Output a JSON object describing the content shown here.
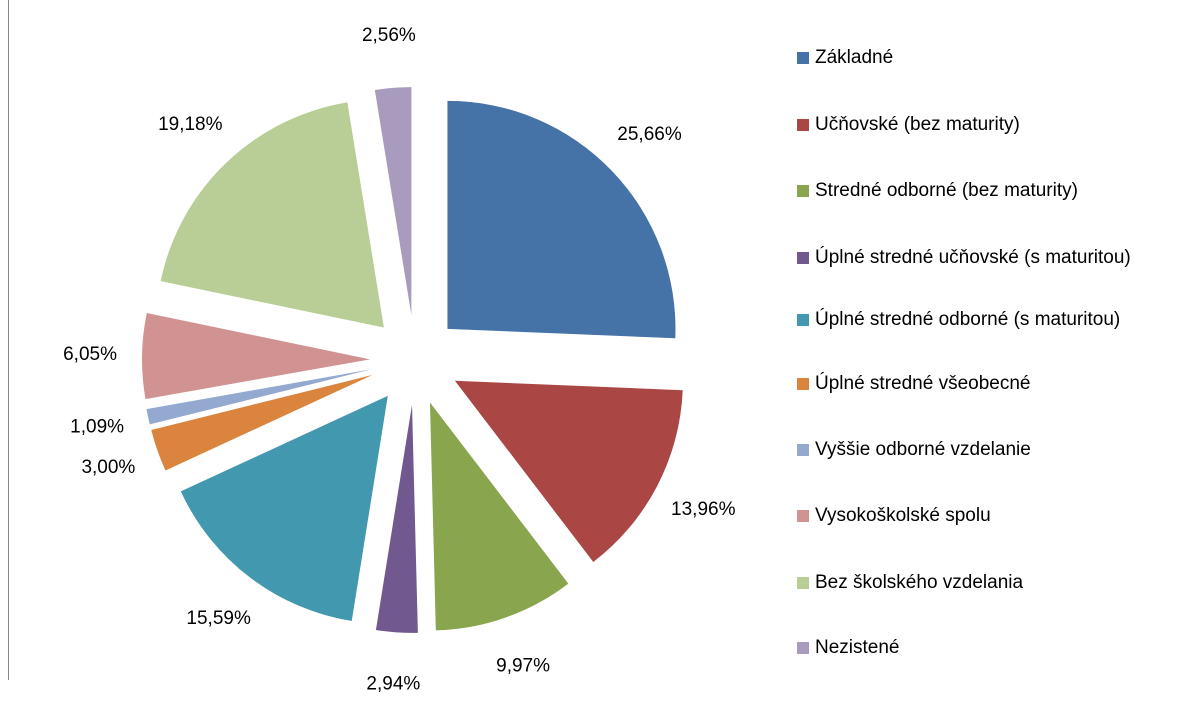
{
  "chart_data": {
    "type": "pie",
    "categories": [
      "Základné",
      "Učňovské (bez maturity)",
      "Stredné odborné (bez maturity)",
      "Úplné stredné učňovské (s maturitou)",
      "Úplné stredné odborné (s maturitou)",
      "Úplné stredné všeobecné",
      "Vyššie odborné vzdelanie",
      "Vysokoškolské spolu",
      "Bez školského vzdelania",
      "Nezistené"
    ],
    "values": [
      25.66,
      13.96,
      9.97,
      2.94,
      15.59,
      3.0,
      1.09,
      6.05,
      19.18,
      2.56
    ],
    "value_labels": [
      "25,66%",
      "13,96%",
      "9,97%",
      "2,94%",
      "15,59%",
      "3,00%",
      "1,09%",
      "6,05%",
      "19,18%",
      "2,56%"
    ],
    "colors": [
      "#4572a7",
      "#aa4643",
      "#89a54e",
      "#71588f",
      "#4198af",
      "#db843d",
      "#93a9cf",
      "#d19392",
      "#b9cd96",
      "#a99bbd"
    ],
    "legend": "right"
  }
}
